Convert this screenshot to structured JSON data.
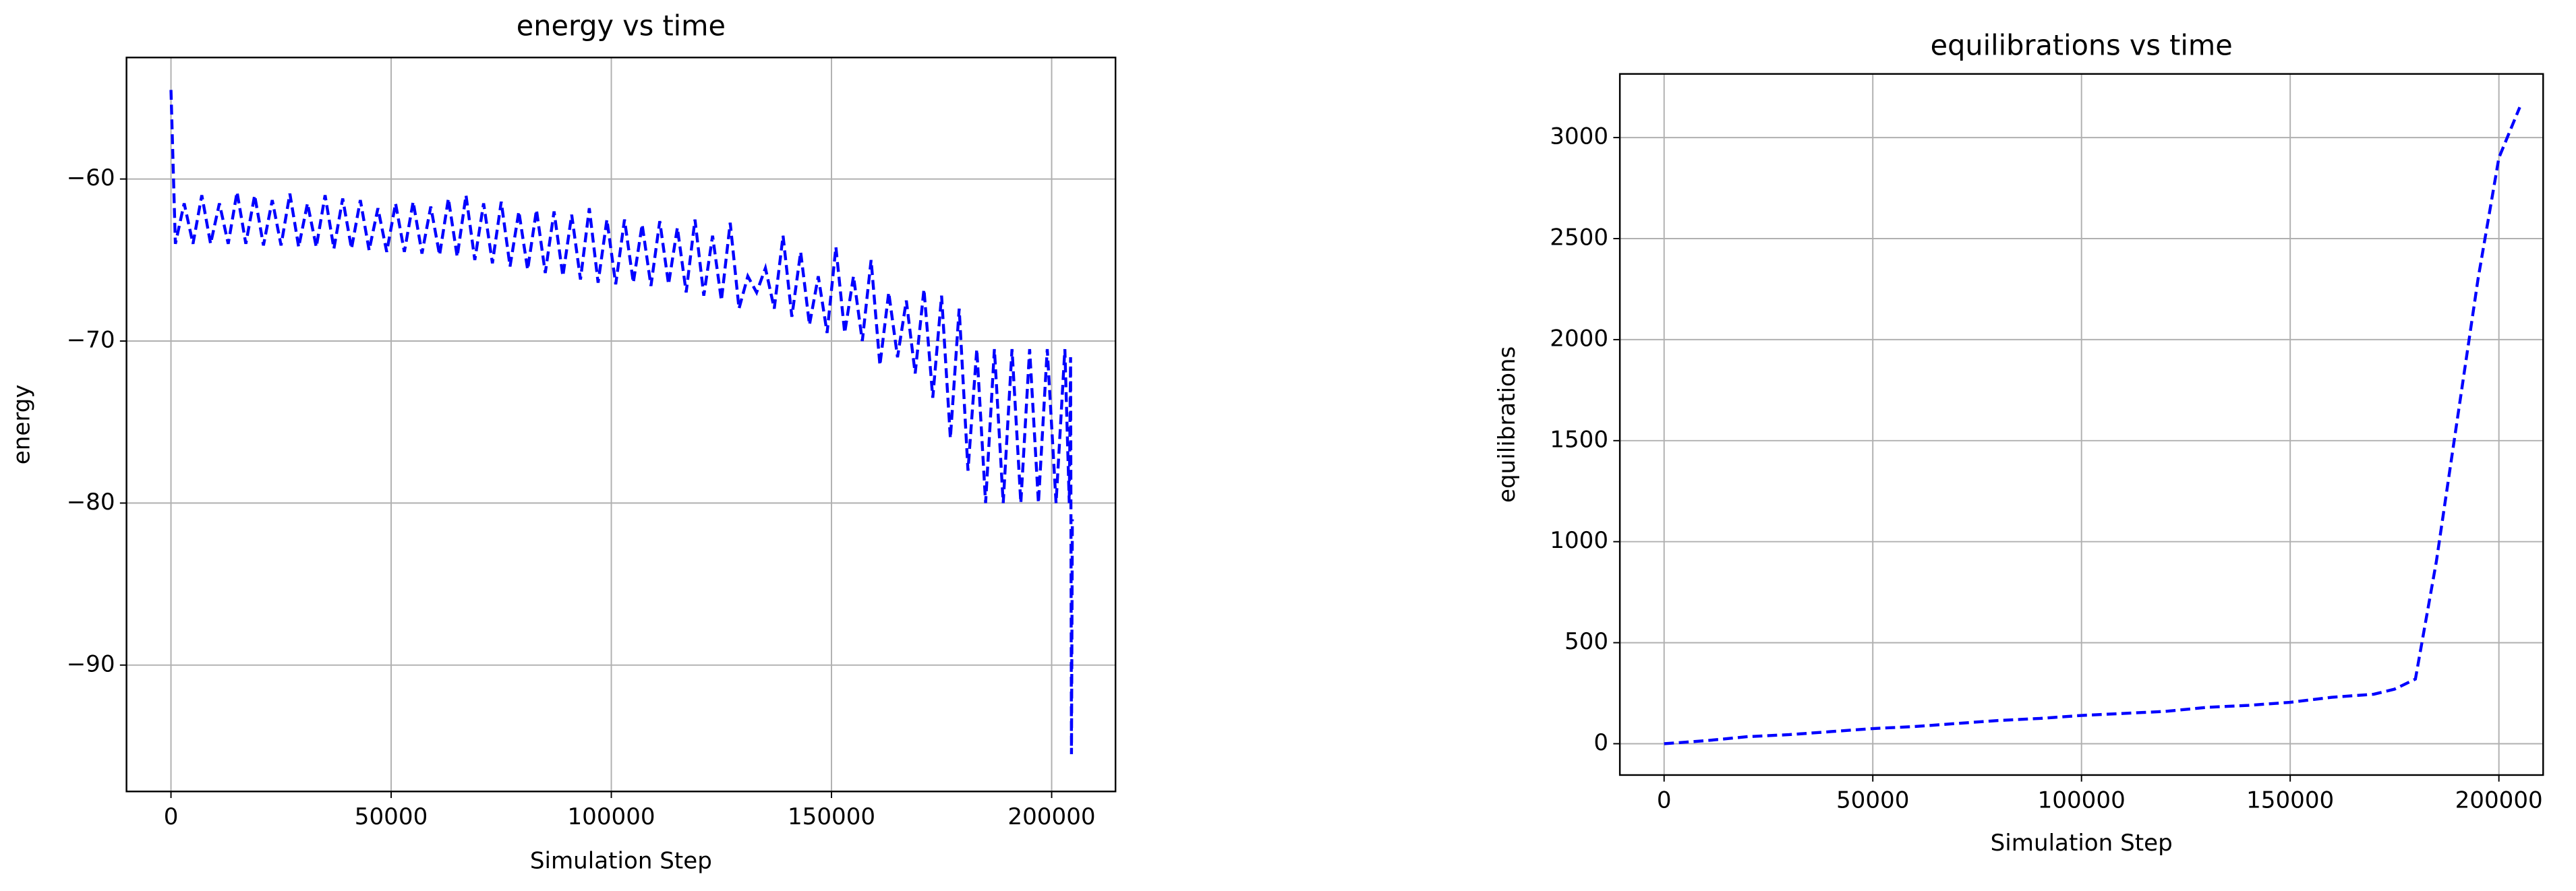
{
  "chart_data": [
    {
      "type": "line",
      "title": "energy vs time",
      "xlabel": "Simulation Step",
      "ylabel": "energy",
      "color": "#0000ff",
      "linestyle": "dashed",
      "grid": true,
      "xlim": [
        -10100,
        214500
      ],
      "ylim": [
        -97.8,
        -52.5
      ],
      "xticks": [
        0,
        50000,
        100000,
        150000,
        200000
      ],
      "yticks": [
        {
          "value": -60,
          "label": "−60"
        },
        {
          "value": -70,
          "label": "−70"
        },
        {
          "value": -80,
          "label": "−80"
        },
        {
          "value": -90,
          "label": "−90"
        }
      ],
      "x": [
        0,
        1000,
        3000,
        5000,
        7000,
        9000,
        11000,
        13000,
        15000,
        17000,
        19000,
        21000,
        23000,
        25000,
        27000,
        29000,
        31000,
        33000,
        35000,
        37000,
        39000,
        41000,
        43000,
        45000,
        47000,
        49000,
        51000,
        53000,
        55000,
        57000,
        59000,
        61000,
        63000,
        65000,
        67000,
        69000,
        71000,
        73000,
        75000,
        77000,
        79000,
        81000,
        83000,
        85000,
        87000,
        89000,
        91000,
        93000,
        95000,
        97000,
        99000,
        101000,
        103000,
        105000,
        107000,
        109000,
        111000,
        113000,
        115000,
        117000,
        119000,
        121000,
        123000,
        125000,
        127000,
        129000,
        131000,
        133000,
        135000,
        137000,
        139000,
        141000,
        143000,
        145000,
        147000,
        149000,
        151000,
        153000,
        155000,
        157000,
        159000,
        161000,
        163000,
        165000,
        167000,
        169000,
        171000,
        173000,
        175000,
        177000,
        179000,
        181000,
        183000,
        185000,
        187000,
        189000,
        191000,
        193000,
        195000,
        197000,
        199000,
        201000,
        203000,
        204000,
        204300,
        204500,
        204700
      ],
      "values": [
        -54.5,
        -64,
        -61.5,
        -64,
        -61,
        -64,
        -61.5,
        -64,
        -60.8,
        -64,
        -61,
        -64.1,
        -61.3,
        -64.1,
        -60.9,
        -64.2,
        -61.5,
        -64.2,
        -61,
        -64.3,
        -61.2,
        -64.3,
        -61.3,
        -64.4,
        -61.8,
        -64.5,
        -61.5,
        -64.5,
        -61.4,
        -64.6,
        -61.7,
        -64.7,
        -61.2,
        -64.8,
        -61,
        -65,
        -61.5,
        -65.2,
        -61.4,
        -65.4,
        -62,
        -65.6,
        -61.9,
        -65.8,
        -62,
        -66,
        -62.2,
        -66.2,
        -61.8,
        -66.4,
        -62.5,
        -66.5,
        -62.5,
        -66.4,
        -62.8,
        -66.6,
        -62.6,
        -66.5,
        -63,
        -67,
        -62.5,
        -67.2,
        -63.5,
        -67.5,
        -62.7,
        -68,
        -66,
        -67,
        -65.5,
        -68,
        -63.5,
        -68.5,
        -64.5,
        -69,
        -66,
        -69.5,
        -64.2,
        -69.5,
        -66,
        -70,
        -65,
        -71.5,
        -67,
        -71,
        -67.5,
        -72,
        -66.8,
        -73.5,
        -67.2,
        -76,
        -68,
        -78,
        -70.5,
        -80,
        -70.5,
        -80,
        -70.5,
        -80,
        -70.5,
        -80,
        -70.5,
        -80,
        -70.5,
        -80,
        -71,
        -95.5,
        -81
      ]
    },
    {
      "type": "line",
      "title": "equilibrations vs time",
      "xlabel": "Simulation Step",
      "ylabel": "equilibrations",
      "color": "#0000ff",
      "linestyle": "dashed",
      "grid": true,
      "xlim": [
        -10600,
        210600
      ],
      "ylim": [
        -155,
        3315
      ],
      "xticks": [
        0,
        50000,
        100000,
        150000,
        200000
      ],
      "yticks": [
        0,
        500,
        1000,
        1500,
        2000,
        2500,
        3000
      ],
      "x": [
        0,
        10000,
        20000,
        30000,
        40000,
        50000,
        60000,
        70000,
        80000,
        90000,
        100000,
        110000,
        120000,
        130000,
        140000,
        150000,
        160000,
        170000,
        175000,
        180000,
        185000,
        190000,
        195000,
        200000,
        205000
      ],
      "values": [
        0,
        15,
        35,
        45,
        60,
        75,
        85,
        100,
        115,
        125,
        140,
        150,
        160,
        180,
        190,
        205,
        230,
        245,
        270,
        320,
        900,
        1600,
        2300,
        2900,
        3150
      ]
    }
  ]
}
